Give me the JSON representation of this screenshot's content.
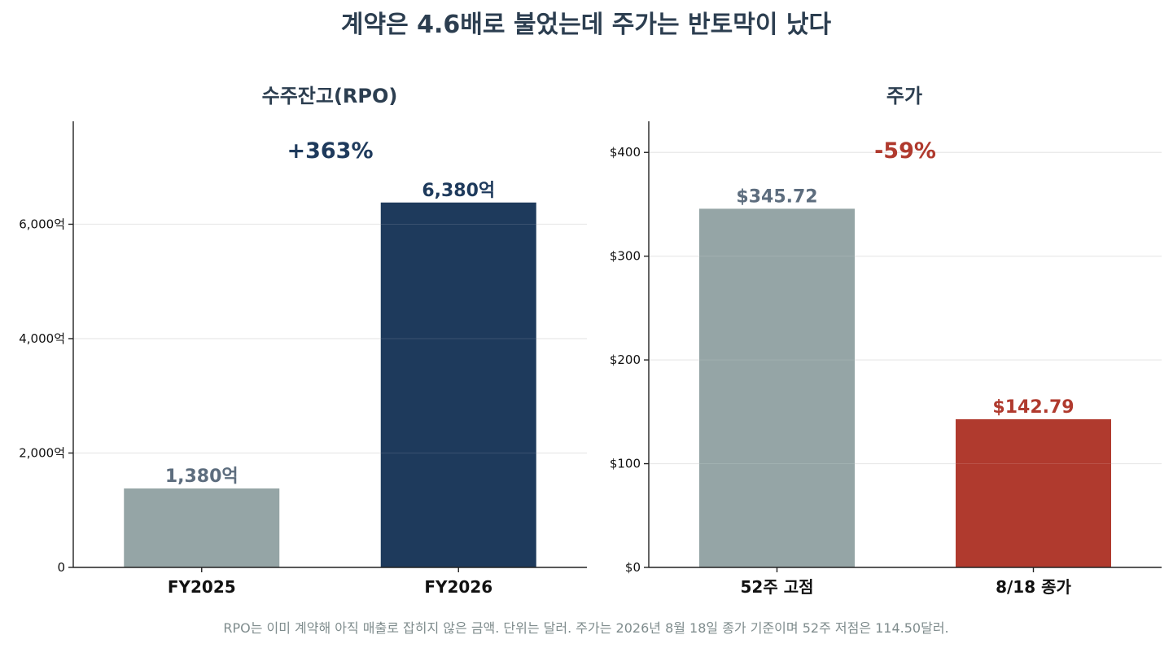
{
  "title": "계약은 4.6배로 불었는데 주가는 반토막이 났다",
  "footnote": "RPO는 이미 계약해 아직 매출로 잡히지 않은 금액. 단위는 달러. 주가는 2026년 8월 18일 종가 기준이며 52주 저점은 114.50달러.",
  "chart_data": [
    {
      "type": "bar",
      "title": "수주잔고(RPO)",
      "categories": [
        "FY2025",
        "FY2026"
      ],
      "values": [
        1380,
        6380
      ],
      "value_labels": [
        "1,380억",
        "6,380억"
      ],
      "bar_colors": [
        "#95a5a6",
        "#1e3a5c"
      ],
      "label_colors": [
        "#5d6d7e",
        "#1e3a5c"
      ],
      "ylim": [
        0,
        7800
      ],
      "yticks": [
        0,
        2000,
        4000,
        6000
      ],
      "ytick_labels": [
        "0",
        "2,000억",
        "4,000억",
        "6,000억"
      ],
      "change_label": "+363%",
      "change_color": "#1e3a5c",
      "grid": true
    },
    {
      "type": "bar",
      "title": "주가",
      "categories": [
        "52주 고점",
        "8/18 종가"
      ],
      "values": [
        345.72,
        142.79
      ],
      "value_labels": [
        "$345.72",
        "$142.79"
      ],
      "bar_colors": [
        "#95a5a6",
        "#b03a2e"
      ],
      "label_colors": [
        "#5d6d7e",
        "#b03a2e"
      ],
      "ylim": [
        0,
        430
      ],
      "yticks": [
        0,
        100,
        200,
        300,
        400
      ],
      "ytick_labels": [
        "$0",
        "$100",
        "$200",
        "$300",
        "$400"
      ],
      "change_label": "-59%",
      "change_color": "#b03a2e",
      "grid": true
    }
  ]
}
